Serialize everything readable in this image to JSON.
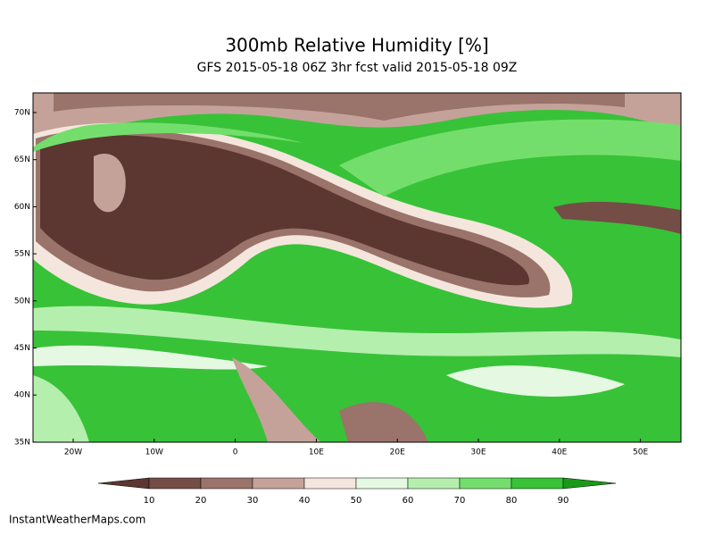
{
  "header": {
    "title": "300mb Relative Humidity [%]",
    "subtitle": "GFS 2015-05-18 06Z 3hr fcst valid 2015-05-18 09Z"
  },
  "axes": {
    "lat_labels": [
      "70N",
      "65N",
      "60N",
      "55N",
      "50N",
      "45N",
      "40N",
      "35N"
    ],
    "lon_labels": [
      "20W",
      "10W",
      "0",
      "10E",
      "20E",
      "30E",
      "40E",
      "50E"
    ]
  },
  "colorbar": {
    "ticks": [
      10,
      20,
      30,
      40,
      50,
      60,
      70,
      80,
      90
    ],
    "colors": [
      "#5c3631",
      "#744d46",
      "#9a736b",
      "#c4a29a",
      "#f4e6dc",
      "#e4f8e2",
      "#b4efae",
      "#74de6c",
      "#38c238",
      "#189a18"
    ]
  },
  "footer": {
    "credit": "InstantWeatherMaps.com"
  }
}
